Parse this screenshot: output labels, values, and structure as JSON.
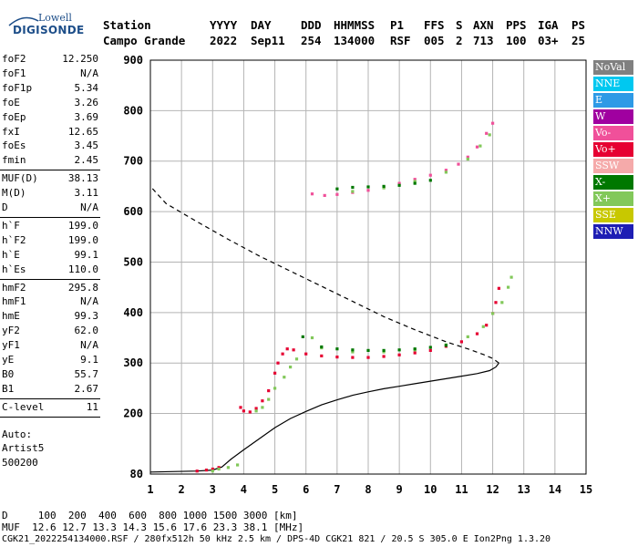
{
  "logo": {
    "top": "Lowell",
    "main": "DIGISONDE"
  },
  "header": {
    "row1": [
      "Station",
      "YYYY",
      "DAY",
      "DDD",
      "HHMMSS",
      "P1",
      "FFS",
      "S",
      "AXN",
      "PPS",
      "IGA",
      "PS"
    ],
    "row2": [
      "Campo Grande",
      "2022",
      "Sep11",
      "254",
      "134000",
      "RSF",
      "005",
      "2",
      "713",
      "100",
      "03+",
      "25"
    ]
  },
  "params": [
    {
      "group": 1,
      "items": [
        {
          "k": "foF2",
          "v": "12.250"
        },
        {
          "k": "foF1",
          "v": "N/A"
        },
        {
          "k": "foF1p",
          "v": "5.34"
        },
        {
          "k": "foE",
          "v": "3.26"
        },
        {
          "k": "foEp",
          "v": "3.69"
        },
        {
          "k": "fxI",
          "v": "12.65"
        },
        {
          "k": "foEs",
          "v": "3.45"
        },
        {
          "k": "fmin",
          "v": "2.45"
        }
      ]
    },
    {
      "group": 2,
      "items": [
        {
          "k": "MUF(D)",
          "v": "38.13"
        },
        {
          "k": "M(D)",
          "v": "3.11"
        },
        {
          "k": "D",
          "v": "N/A"
        }
      ]
    },
    {
      "group": 3,
      "items": [
        {
          "k": "h`F",
          "v": "199.0"
        },
        {
          "k": "h`F2",
          "v": "199.0"
        },
        {
          "k": "h`E",
          "v": "99.1"
        },
        {
          "k": "h`Es",
          "v": "110.0"
        }
      ]
    },
    {
      "group": 4,
      "items": [
        {
          "k": "hmF2",
          "v": "295.8"
        },
        {
          "k": "hmF1",
          "v": "N/A"
        },
        {
          "k": "hmE",
          "v": "99.3"
        },
        {
          "k": "yF2",
          "v": "62.0"
        },
        {
          "k": "yF1",
          "v": "N/A"
        },
        {
          "k": "yE",
          "v": "9.1"
        },
        {
          "k": "B0",
          "v": "55.7"
        },
        {
          "k": "B1",
          "v": "2.67"
        }
      ]
    },
    {
      "group": 5,
      "items": [
        {
          "k": "C-level",
          "v": "11"
        }
      ]
    }
  ],
  "auto": [
    "Auto:",
    "Artist5",
    "500200"
  ],
  "legend": [
    {
      "label": "NoVal",
      "color": "#808080"
    },
    {
      "label": "NNE",
      "color": "#00c8f0"
    },
    {
      "label": "E",
      "color": "#2e9ae6"
    },
    {
      "label": "W",
      "color": "#a000a0"
    },
    {
      "label": "Vo-",
      "color": "#f0509a"
    },
    {
      "label": "Vo+",
      "color": "#e60032"
    },
    {
      "label": "SSW",
      "color": "#f5aaaa"
    },
    {
      "label": "X-",
      "color": "#007800"
    },
    {
      "label": "X+",
      "color": "#82c85a"
    },
    {
      "label": "SSE",
      "color": "#c8c800"
    },
    {
      "label": "NNW",
      "color": "#1e1eb4"
    }
  ],
  "bottom": {
    "d_line": "D     100  200  400  600  800 1000 1500 3000 [km]",
    "muf_line": "MUF  12.6 12.7 13.3 14.3 15.6 17.6 23.3 38.1 [MHz]",
    "file_line": "CGK21_2022254134000.RSF / 280fx512h 50 kHz 2.5 km / DPS-4D CGK21 821 / 20.5 S 305.0 E Ion2Png 1.3.20"
  },
  "chart_data": {
    "type": "scatter",
    "xlim": [
      1,
      15
    ],
    "ylim": [
      80,
      900
    ],
    "xticks": [
      1,
      2,
      3,
      4,
      5,
      6,
      7,
      8,
      9,
      10,
      11,
      12,
      13,
      14,
      15
    ],
    "yticks": [
      80,
      200,
      300,
      400,
      500,
      600,
      700,
      800,
      900
    ],
    "grid": true,
    "legend_position": "right",
    "series": [
      {
        "color": "#e60032",
        "points": [
          [
            2.5,
            86
          ],
          [
            2.8,
            88
          ],
          [
            3.0,
            90
          ],
          [
            3.2,
            93
          ],
          [
            3.9,
            212
          ],
          [
            4.0,
            205
          ],
          [
            4.2,
            203
          ],
          [
            4.4,
            210
          ],
          [
            4.6,
            225
          ],
          [
            4.8,
            245
          ],
          [
            5.0,
            280
          ],
          [
            5.1,
            300
          ],
          [
            5.25,
            318
          ],
          [
            5.4,
            328
          ],
          [
            5.6,
            326
          ],
          [
            6.0,
            318
          ],
          [
            6.5,
            314
          ],
          [
            7.0,
            312
          ],
          [
            7.5,
            311
          ],
          [
            8.0,
            311
          ],
          [
            8.5,
            313
          ],
          [
            9.0,
            316
          ],
          [
            9.5,
            320
          ],
          [
            10.0,
            325
          ],
          [
            10.5,
            333
          ],
          [
            11.0,
            342
          ],
          [
            11.5,
            358
          ],
          [
            11.8,
            375
          ],
          [
            12.0,
            398
          ],
          [
            12.1,
            420
          ],
          [
            12.2,
            448
          ]
        ]
      },
      {
        "color": "#f0509a",
        "points": [
          [
            6.2,
            635
          ],
          [
            6.6,
            632
          ],
          [
            7.0,
            634
          ],
          [
            7.5,
            638
          ],
          [
            8.0,
            642
          ],
          [
            8.5,
            648
          ],
          [
            9.0,
            656
          ],
          [
            9.5,
            664
          ],
          [
            10.0,
            672
          ],
          [
            10.5,
            682
          ],
          [
            10.9,
            694
          ],
          [
            11.2,
            708
          ],
          [
            11.5,
            728
          ],
          [
            11.8,
            755
          ],
          [
            12.0,
            775
          ]
        ]
      },
      {
        "color": "#82c85a",
        "points": [
          [
            3.0,
            86
          ],
          [
            3.2,
            90
          ],
          [
            3.5,
            93
          ],
          [
            3.8,
            98
          ],
          [
            4.4,
            205
          ],
          [
            4.6,
            212
          ],
          [
            4.8,
            228
          ],
          [
            5.0,
            250
          ],
          [
            5.3,
            272
          ],
          [
            5.5,
            292
          ],
          [
            5.7,
            308
          ],
          [
            6.2,
            350
          ],
          [
            6.5,
            330
          ],
          [
            7.5,
            322
          ],
          [
            8.5,
            322
          ],
          [
            9.5,
            326
          ],
          [
            10.5,
            336
          ],
          [
            11.2,
            352
          ],
          [
            11.7,
            372
          ],
          [
            12.0,
            398
          ],
          [
            12.3,
            420
          ],
          [
            12.5,
            450
          ],
          [
            12.6,
            470
          ],
          [
            7.5,
            640
          ],
          [
            8.5,
            647
          ],
          [
            9.5,
            660
          ],
          [
            10.5,
            678
          ],
          [
            11.2,
            704
          ],
          [
            11.6,
            730
          ],
          [
            11.9,
            752
          ]
        ]
      },
      {
        "color": "#007800",
        "points": [
          [
            5.9,
            352
          ],
          [
            6.5,
            332
          ],
          [
            7.0,
            328
          ],
          [
            7.5,
            326
          ],
          [
            8.0,
            325
          ],
          [
            8.5,
            325
          ],
          [
            9.0,
            326
          ],
          [
            9.5,
            328
          ],
          [
            10.0,
            331
          ],
          [
            10.5,
            335
          ],
          [
            7.0,
            645
          ],
          [
            7.5,
            648
          ],
          [
            8.0,
            649
          ],
          [
            8.5,
            650
          ],
          [
            9.0,
            652
          ],
          [
            9.5,
            656
          ],
          [
            10.0,
            662
          ]
        ]
      }
    ],
    "profile": {
      "color": "#000000",
      "points": [
        [
          1.0,
          84
        ],
        [
          2.5,
          86
        ],
        [
          3.0,
          88
        ],
        [
          3.3,
          94
        ],
        [
          3.6,
          110
        ],
        [
          4.0,
          128
        ],
        [
          4.5,
          150
        ],
        [
          5.0,
          172
        ],
        [
          5.5,
          190
        ],
        [
          6.0,
          204
        ],
        [
          6.5,
          217
        ],
        [
          7.0,
          227
        ],
        [
          7.5,
          236
        ],
        [
          8.0,
          243
        ],
        [
          8.5,
          249
        ],
        [
          9.0,
          254
        ],
        [
          9.5,
          259
        ],
        [
          10.0,
          264
        ],
        [
          10.5,
          269
        ],
        [
          11.0,
          274
        ],
        [
          11.5,
          279
        ],
        [
          11.9,
          285
        ],
        [
          12.1,
          292
        ],
        [
          12.2,
          300
        ],
        [
          12.0,
          309
        ],
        [
          11.7,
          317
        ],
        [
          11.3,
          326
        ],
        [
          10.5,
          342
        ],
        [
          9.5,
          366
        ],
        [
          8.5,
          392
        ],
        [
          7.5,
          422
        ],
        [
          6.5,
          452
        ],
        [
          5.5,
          482
        ],
        [
          4.5,
          512
        ],
        [
          3.5,
          545
        ],
        [
          2.5,
          580
        ],
        [
          1.5,
          616
        ],
        [
          1.0,
          650
        ]
      ]
    }
  }
}
